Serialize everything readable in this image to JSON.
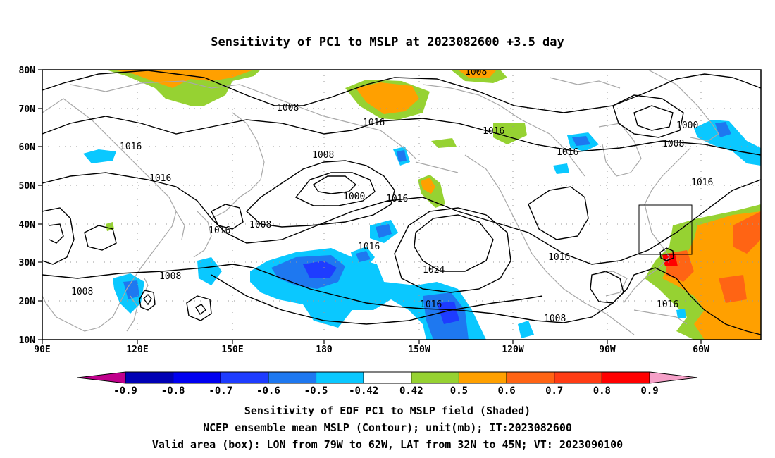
{
  "title": "Sensitivity of PC1 to MSLP at 2023082600 +3.5 day",
  "axes": {
    "lat_labels": [
      "80N",
      "70N",
      "60N",
      "50N",
      "40N",
      "30N",
      "20N",
      "10N"
    ],
    "lon_labels": [
      "90E",
      "120E",
      "150E",
      "180",
      "150W",
      "120W",
      "90W",
      "60W"
    ]
  },
  "contour_labels": [
    "1008",
    "1008",
    "1016",
    "1016",
    "1016",
    "1016",
    "1000",
    "1008",
    "1008",
    "1016",
    "1000",
    "1016",
    "1008",
    "1016",
    "1016",
    "1016",
    "1024",
    "1008",
    "1016",
    "1016",
    "1008",
    "1008",
    "1016",
    "1016"
  ],
  "colorbar": {
    "labels": [
      "-0.9",
      "-0.8",
      "-0.7",
      "-0.6",
      "-0.5",
      "-0.42",
      "0.42",
      "0.5",
      "0.6",
      "0.7",
      "0.8",
      "0.9"
    ],
    "colors": [
      "#c0008c",
      "#0000b4",
      "#0000f0",
      "#1e3cff",
      "#1e78f0",
      "#0ac8ff",
      "#ffffff",
      "#96d232",
      "#ffa000",
      "#ff6414",
      "#ff3c14",
      "#ff0000",
      "#f5a0c8"
    ]
  },
  "shading_colors": {
    "neg_deep": "#1e3cff",
    "neg_mid": "#1e78f0",
    "neg_light": "#0ac8ff",
    "pos_light": "#96d232",
    "pos_mid": "#ffa000",
    "pos_strong": "#ff6414",
    "pos_deep": "#ff0000"
  },
  "captions": {
    "line1": "Sensitivity of EOF PC1 to MSLP field (Shaded)",
    "line2": "NCEP ensemble mean MSLP (Contour); unit(mb); IT:2023082600",
    "line3": "Valid area (box): LON from 79W to 62W, LAT from 32N to 45N; VT: 2023090100"
  }
}
